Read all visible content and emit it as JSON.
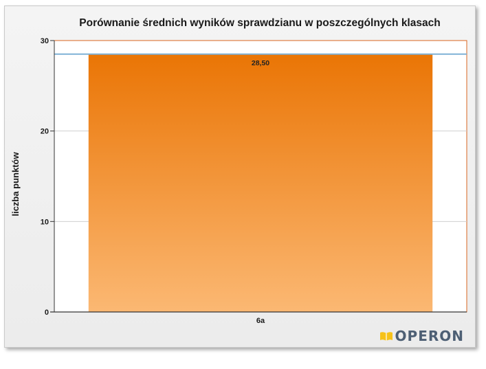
{
  "chart_data": {
    "type": "bar",
    "title": "Porównanie średnich wyników sprawdzianu w poszczególnych klasach",
    "xlabel": "",
    "ylabel": "liczba punktów",
    "categories": [
      "6a"
    ],
    "values": [
      28.5
    ],
    "data_labels": [
      "28,50"
    ],
    "reference_line": 28.5,
    "ylim": [
      0,
      30
    ],
    "yticks": [
      0,
      10,
      20,
      30
    ],
    "ytick_labels": [
      "0",
      "10",
      "20",
      "30"
    ],
    "grid": true,
    "legend": "none",
    "colors": {
      "bar_top": "#ea7505",
      "bar_bottom": "#fbb873",
      "reference_line": "#7fb2d6",
      "plot_border": "#d9641f",
      "grid": "#cfcfcf"
    }
  },
  "branding": {
    "logo_text": "OPERON",
    "logo_icon": "book-icon"
  }
}
